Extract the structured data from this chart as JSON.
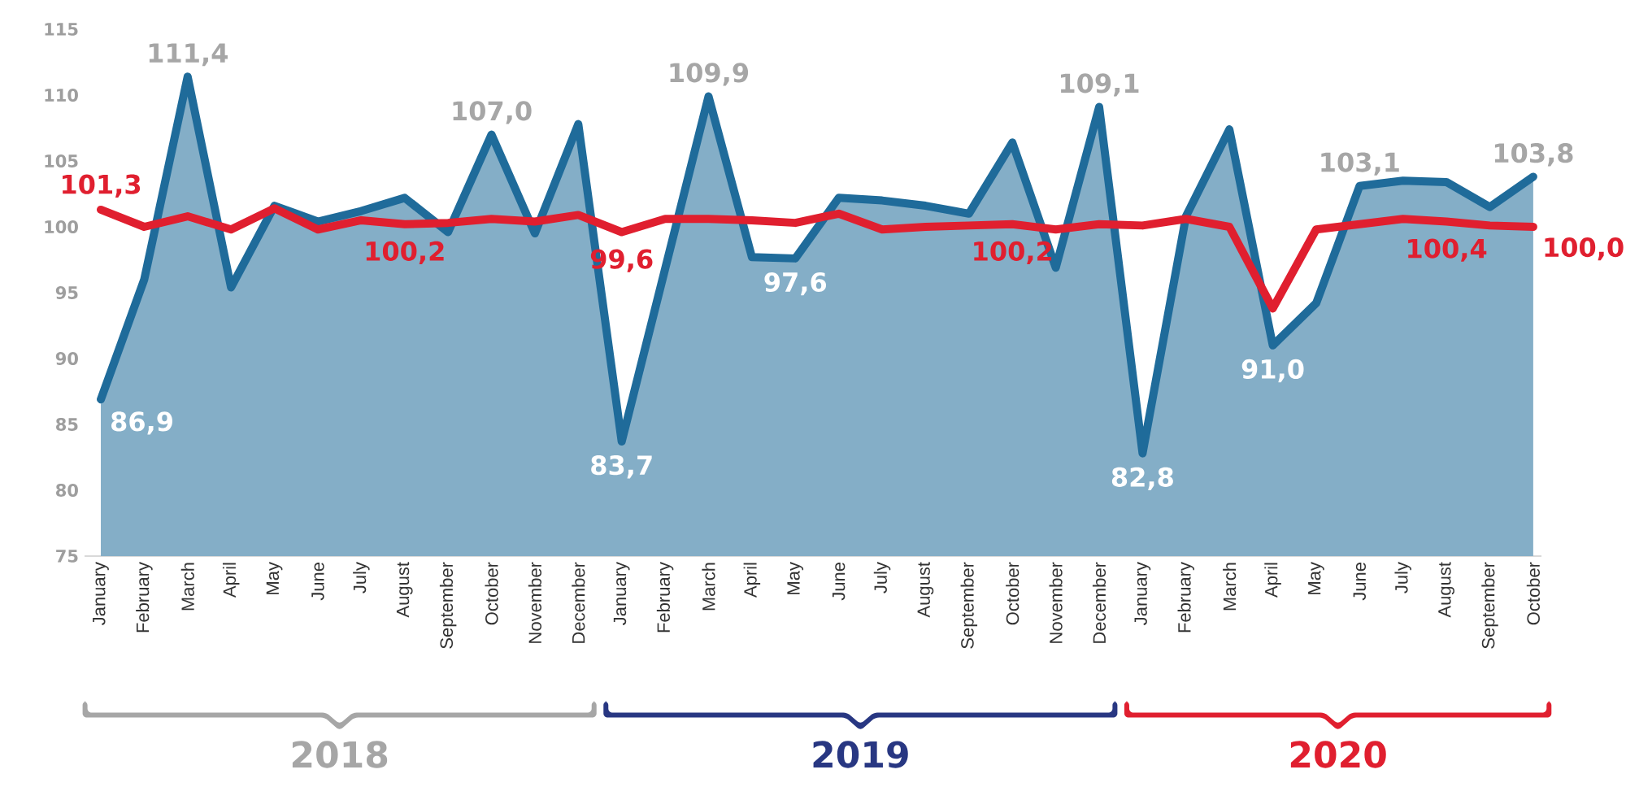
{
  "chart_data": {
    "type": "line",
    "categories": [
      "January",
      "February",
      "March",
      "April",
      "May",
      "June",
      "July",
      "August",
      "September",
      "October",
      "November",
      "December",
      "January",
      "February",
      "March",
      "April",
      "May",
      "June",
      "July",
      "August",
      "September",
      "October",
      "November",
      "December",
      "January",
      "February",
      "March",
      "April",
      "May",
      "June",
      "July",
      "August",
      "September",
      "October"
    ],
    "series": [
      {
        "type": "area",
        "color": "#1f6b9a",
        "values": [
          86.9,
          96.0,
          111.4,
          95.4,
          101.6,
          100.4,
          101.2,
          102.2,
          99.6,
          107.0,
          99.5,
          107.8,
          83.7,
          96.8,
          109.9,
          97.7,
          97.6,
          102.2,
          102.0,
          101.6,
          101.0,
          106.4,
          96.9,
          109.1,
          82.8,
          100.8,
          107.4,
          91.0,
          94.2,
          103.1,
          103.5,
          103.4,
          101.5,
          103.8
        ],
        "value_labels": [
          "86,9",
          null,
          "111,4",
          null,
          null,
          null,
          null,
          null,
          null,
          "107,0",
          null,
          null,
          "83,7",
          null,
          "109,9",
          null,
          "97,6",
          null,
          null,
          null,
          null,
          null,
          null,
          "109,1",
          "82,8",
          null,
          null,
          "91,0",
          null,
          "103,1",
          null,
          null,
          null,
          "103,8"
        ]
      },
      {
        "type": "line",
        "color": "#e01f2f",
        "values": [
          101.3,
          100.0,
          100.8,
          99.8,
          101.4,
          99.8,
          100.5,
          100.2,
          100.3,
          100.6,
          100.4,
          100.9,
          99.6,
          100.6,
          100.6,
          100.5,
          100.3,
          101.0,
          99.8,
          100.0,
          100.1,
          100.2,
          99.8,
          100.2,
          100.1,
          100.6,
          100.0,
          93.8,
          99.8,
          100.2,
          100.6,
          100.4,
          100.1,
          100.0
        ],
        "value_labels": [
          "101,3",
          null,
          null,
          null,
          null,
          null,
          null,
          "100,2",
          null,
          null,
          null,
          null,
          "99,6",
          null,
          null,
          null,
          null,
          null,
          null,
          null,
          null,
          "100,2",
          null,
          null,
          null,
          null,
          null,
          null,
          null,
          null,
          null,
          "100,4",
          null,
          "100,0"
        ]
      }
    ],
    "ylim": [
      75,
      115
    ],
    "yticks": [
      75,
      80,
      85,
      90,
      95,
      100,
      105,
      110,
      115
    ],
    "annotations": [
      "2018",
      "2019",
      "2020"
    ],
    "grid": false,
    "marker": "none",
    "line_style": "solid"
  }
}
